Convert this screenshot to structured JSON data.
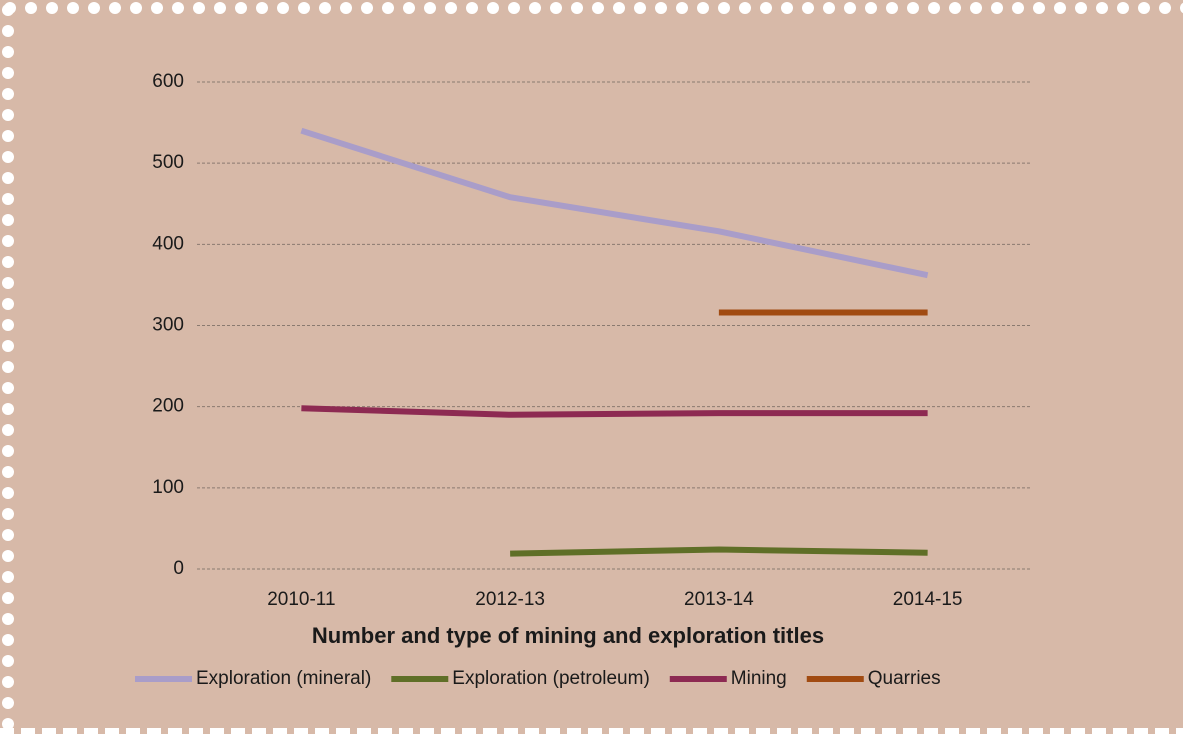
{
  "chart_data": {
    "type": "line",
    "title": "Number and type of mining and exploration titles",
    "categories": [
      "2010-11",
      "2012-13",
      "2013-14",
      "2014-15"
    ],
    "series": [
      {
        "name": "Exploration (mineral)",
        "color": "#a99dc9",
        "values": [
          540,
          458,
          416,
          362
        ]
      },
      {
        "name": "Exploration (petroleum)",
        "color": "#5f6f27",
        "values": [
          null,
          19,
          24,
          20
        ]
      },
      {
        "name": "Mining",
        "color": "#8d2a52",
        "values": [
          198,
          190,
          192,
          192
        ]
      },
      {
        "name": "Quarries",
        "color": "#a14b12",
        "values": [
          null,
          null,
          316,
          316
        ]
      }
    ],
    "ylim": [
      0,
      600
    ],
    "yticks": [
      0,
      100,
      200,
      300,
      400,
      500,
      600
    ],
    "grid": true,
    "legend": "bottom"
  }
}
